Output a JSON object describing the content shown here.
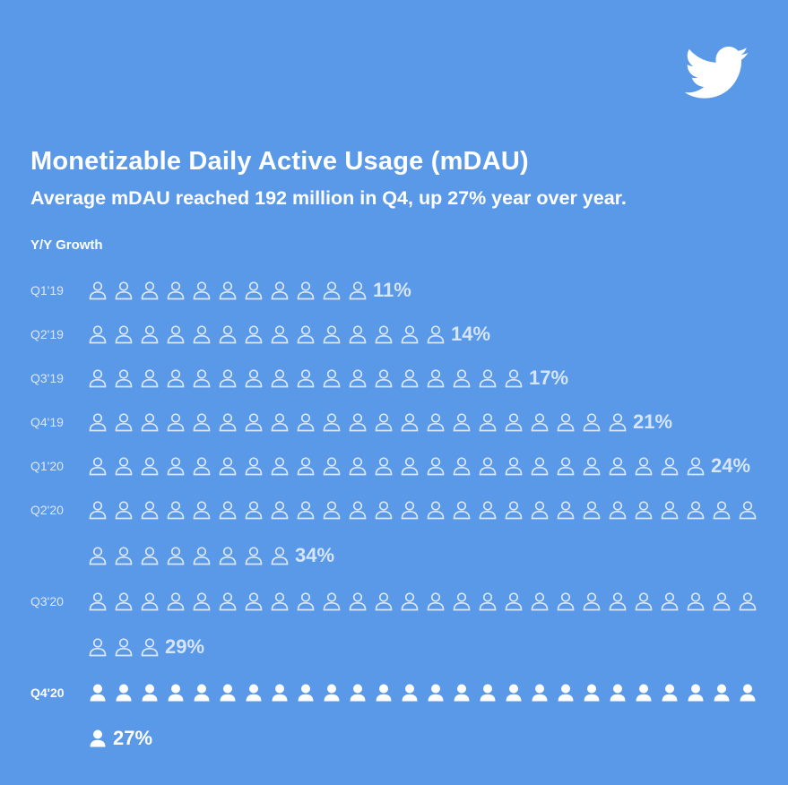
{
  "header": {
    "title": "Monetizable Daily Active Usage (mDAU)",
    "subtitle": "Average mDAU reached 192 million in Q4, up 27% year over year."
  },
  "colors": {
    "background": "#5a98e8",
    "outline_icon": "#dbe8fb",
    "filled_icon": "#ffffff"
  },
  "icons": {
    "logo": "twitter-bird-icon",
    "person": "person-icon"
  },
  "chart_data": {
    "type": "pictogram",
    "title": "Monetizable Daily Active Usage (mDAU)",
    "subtitle": "Average mDAU reached 192 million in Q4, up 27% year over year.",
    "ylabel": "Y/Y Growth",
    "unit": "%",
    "categories": [
      "Q1'19",
      "Q2'19",
      "Q3'19",
      "Q4'19",
      "Q1'20",
      "Q2'20",
      "Q3'20",
      "Q4'20"
    ],
    "values": [
      11,
      14,
      17,
      21,
      24,
      34,
      29,
      27
    ],
    "value_labels": [
      "11%",
      "14%",
      "17%",
      "21%",
      "24%",
      "34%",
      "29%",
      "27%"
    ],
    "highlighted": "Q4'20"
  }
}
